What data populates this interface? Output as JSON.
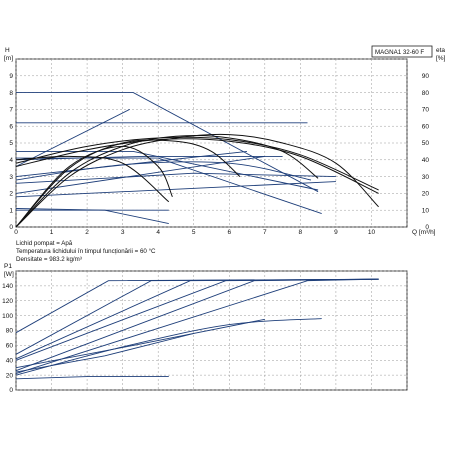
{
  "header": {
    "model_label": "MAGNA1 32-60 F"
  },
  "conditions": {
    "line1": "Lichid pompat = Apă",
    "line2": "Temperatura lichidului în timpul funcționării = 60 °C",
    "line3": "Densitate = 983.2 kg/m³"
  },
  "colors": {
    "mode_curve": "#1f3f7a",
    "pump_curve": "#111111",
    "efficiency_curve": "#111111",
    "grid": "#9a9a9a",
    "frame": "#222222"
  },
  "chart_data": [
    {
      "type": "line",
      "panel": "head",
      "ylabel": "H",
      "yunit": "[m]",
      "y2label": "eta",
      "y2unit": "[%]",
      "xlabel": "Q",
      "xunit": "[m³/h]",
      "xlim": [
        0,
        11
      ],
      "ylim": [
        0,
        10
      ],
      "y2lim": [
        0,
        100
      ],
      "xticks": [
        "0",
        "1",
        "2",
        "3",
        "4",
        "5",
        "6",
        "7",
        "8",
        "9",
        "10"
      ],
      "yticks": [
        "0",
        "1",
        "2",
        "3",
        "4",
        "5",
        "6",
        "7",
        "8",
        "9"
      ],
      "y2ticks": [
        "0",
        "10",
        "20",
        "30",
        "40",
        "50",
        "60",
        "70",
        "80",
        "90"
      ],
      "grid": true,
      "series": [
        {
          "role": "mode",
          "x": [
            0,
            3.3,
            8.5
          ],
          "y": [
            8.0,
            8.0,
            2.1
          ]
        },
        {
          "role": "mode",
          "x": [
            0,
            8.2
          ],
          "y": [
            6.2,
            6.2
          ]
        },
        {
          "role": "mode",
          "x": [
            0,
            3.3,
            8.5
          ],
          "y": [
            4.5,
            4.5,
            2.2
          ]
        },
        {
          "role": "mode",
          "x": [
            0,
            3.6,
            7.5
          ],
          "y": [
            4.0,
            4.2,
            4.2
          ]
        },
        {
          "role": "mode",
          "x": [
            0,
            3.0,
            6.0,
            8.3
          ],
          "y": [
            2.8,
            3.7,
            3.8,
            2.8
          ]
        },
        {
          "role": "mode",
          "x": [
            0,
            4.3
          ],
          "y": [
            1.0,
            1.0
          ]
        },
        {
          "role": "mode",
          "x": [
            0,
            3.2
          ],
          "y": [
            3.6,
            7.0
          ]
        },
        {
          "role": "mode",
          "x": [
            0,
            5.0,
            9.0
          ],
          "y": [
            2.6,
            3.2,
            3.0
          ]
        },
        {
          "role": "mode",
          "x": [
            0,
            9.0
          ],
          "y": [
            1.8,
            2.7
          ]
        },
        {
          "role": "mode",
          "x": [
            0,
            7.0
          ],
          "y": [
            2.0,
            4.2
          ]
        },
        {
          "role": "mode",
          "x": [
            0,
            6.5
          ],
          "y": [
            3.0,
            4.5
          ]
        },
        {
          "role": "mode",
          "x": [
            0,
            4.0,
            8.6
          ],
          "y": [
            4.1,
            4.1,
            0.8
          ]
        },
        {
          "role": "mode",
          "x": [
            0,
            2.5,
            4.3
          ],
          "y": [
            1.1,
            1.0,
            0.2
          ]
        },
        {
          "role": "pump",
          "x": [
            0,
            2.0,
            4.0,
            6.0,
            8.0,
            10.2
          ],
          "y": [
            3.6,
            4.6,
            5.2,
            5.1,
            4.2,
            2.0
          ]
        },
        {
          "role": "pump",
          "x": [
            0,
            2.0,
            4.0,
            6.0,
            8.0,
            10.2
          ],
          "y": [
            3.8,
            4.8,
            5.3,
            5.2,
            4.3,
            2.2
          ]
        },
        {
          "role": "pump",
          "x": [
            0,
            1.5,
            3.0,
            4.3
          ],
          "y": [
            4.0,
            4.2,
            3.8,
            1.5
          ]
        },
        {
          "role": "efficiency",
          "x": [
            0,
            1.5,
            3.0,
            4.5,
            6.0,
            7.5,
            9.0,
            10.2
          ],
          "y": [
            0,
            3.0,
            4.6,
            5.3,
            5.5,
            5.0,
            3.8,
            1.2
          ]
        },
        {
          "role": "efficiency",
          "x": [
            0,
            1.5,
            3.0,
            4.5,
            6.0,
            7.5,
            8.5
          ],
          "y": [
            0,
            3.2,
            4.8,
            5.4,
            5.3,
            4.5,
            2.9
          ]
        },
        {
          "role": "efficiency",
          "x": [
            0,
            1.5,
            3.0,
            4.5,
            5.5,
            6.3
          ],
          "y": [
            0,
            3.5,
            5.0,
            5.1,
            4.5,
            3.0
          ]
        },
        {
          "role": "efficiency",
          "x": [
            0,
            1.5,
            3.0,
            4.0,
            4.4
          ],
          "y": [
            0,
            3.6,
            4.8,
            3.6,
            1.8
          ]
        }
      ]
    },
    {
      "type": "line",
      "panel": "power",
      "ylabel": "P1",
      "yunit": "[W]",
      "xlim": [
        0,
        11
      ],
      "ylim": [
        0,
        160
      ],
      "yticks": [
        "0",
        "20",
        "40",
        "60",
        "80",
        "100",
        "120",
        "140"
      ],
      "grid": true,
      "series": [
        {
          "role": "mode",
          "x": [
            0,
            2.6,
            10.2
          ],
          "y": [
            77,
            147,
            149
          ]
        },
        {
          "role": "mode",
          "x": [
            0,
            3.8,
            10.2
          ],
          "y": [
            48,
            147,
            149
          ]
        },
        {
          "role": "mode",
          "x": [
            0,
            4.9,
            10.2
          ],
          "y": [
            42,
            147,
            149
          ]
        },
        {
          "role": "mode",
          "x": [
            0,
            5.9,
            10.2
          ],
          "y": [
            40,
            147,
            149
          ]
        },
        {
          "role": "mode",
          "x": [
            0,
            6.7,
            10.2
          ],
          "y": [
            26,
            147,
            149
          ]
        },
        {
          "role": "mode",
          "x": [
            0,
            8.2,
            10.2
          ],
          "y": [
            22,
            147,
            149
          ]
        },
        {
          "role": "mode",
          "x": [
            0,
            3.0,
            6.0,
            8.6
          ],
          "y": [
            20,
            58,
            88,
            96
          ]
        },
        {
          "role": "mode",
          "x": [
            0,
            2.0,
            4.3
          ],
          "y": [
            15,
            18,
            18
          ]
        },
        {
          "role": "mode",
          "x": [
            0,
            3.3,
            7.0
          ],
          "y": [
            30,
            60,
            95
          ]
        },
        {
          "role": "mode",
          "x": [
            0,
            2.5,
            5.0
          ],
          "y": [
            24,
            46,
            76
          ]
        }
      ]
    }
  ]
}
